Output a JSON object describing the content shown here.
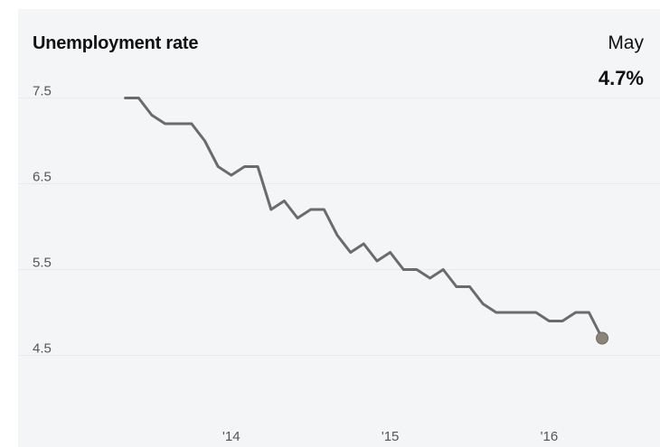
{
  "header": {
    "title": "Unemployment rate",
    "latest_label": "May",
    "latest_value": "4.7%"
  },
  "colors": {
    "background": "#f3f5f7",
    "line": "#6b6b6b",
    "gridline": "#e8ebee",
    "end_marker": "#8c8478"
  },
  "chart_data": {
    "type": "line",
    "title": "Unemployment rate",
    "xlabel": "",
    "ylabel": "",
    "yticks": [
      7.5,
      6.5,
      5.5,
      4.5
    ],
    "ytick_labels": [
      "7.5",
      "6.5",
      "5.5",
      "4.5"
    ],
    "xticks": [
      {
        "x": "2014-01",
        "label": "'14"
      },
      {
        "x": "2015-01",
        "label": "'15"
      },
      {
        "x": "2016-01",
        "label": "'16"
      }
    ],
    "ylim": [
      3.8,
      7.8
    ],
    "xlim": [
      "2013-01",
      "2016-08"
    ],
    "grid": true,
    "series": [
      {
        "x": [
          "2013-05",
          "2013-06",
          "2013-07",
          "2013-08",
          "2013-09",
          "2013-10",
          "2013-11",
          "2013-12",
          "2014-01",
          "2014-02",
          "2014-03",
          "2014-04",
          "2014-05",
          "2014-06",
          "2014-07",
          "2014-08",
          "2014-09",
          "2014-10",
          "2014-11",
          "2014-12",
          "2015-01",
          "2015-02",
          "2015-03",
          "2015-04",
          "2015-05",
          "2015-06",
          "2015-07",
          "2015-08",
          "2015-09",
          "2015-10",
          "2015-11",
          "2015-12",
          "2016-01",
          "2016-02",
          "2016-03",
          "2016-04",
          "2016-05"
        ],
        "values": [
          7.5,
          7.5,
          7.3,
          7.2,
          7.2,
          7.2,
          7.0,
          6.7,
          6.6,
          6.7,
          6.7,
          6.2,
          6.3,
          6.1,
          6.2,
          6.2,
          5.9,
          5.7,
          5.8,
          5.6,
          5.7,
          5.5,
          5.5,
          5.4,
          5.5,
          5.3,
          5.3,
          5.1,
          5.0,
          5.0,
          5.0,
          5.0,
          4.9,
          4.9,
          5.0,
          5.0,
          4.7
        ]
      }
    ],
    "highlight": {
      "x": "2016-05",
      "value": 4.7
    }
  }
}
